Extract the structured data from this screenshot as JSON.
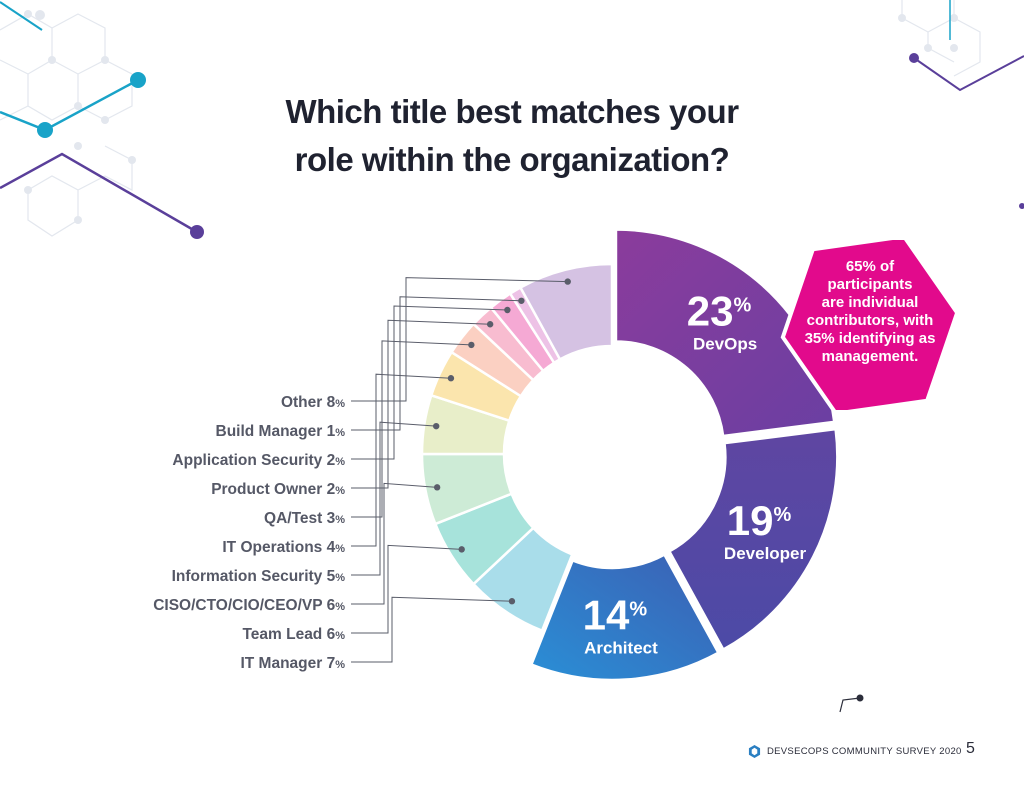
{
  "title_lines": [
    "Which title best matches your",
    "role within the organization?"
  ],
  "callout": {
    "lines": [
      "65% of",
      "participants",
      "are individual",
      "contributors, with",
      "35% identifying as",
      "management."
    ],
    "color": "#e20a8c"
  },
  "footer": {
    "brand": "DEVSECOPS COMMUNITY SURVEY 2020",
    "page": "5"
  },
  "chart_data": {
    "type": "pie",
    "donut": true,
    "title": "Which title best matches your role within the organization?",
    "unit": "%",
    "slices": [
      {
        "label": "DevOps",
        "value": 23,
        "color_start": "#8b3c9c",
        "color_end": "#6a3fa2",
        "labeled_inside": true
      },
      {
        "label": "Developer",
        "value": 19,
        "color_start": "#5f46a2",
        "color_end": "#4c4aa6",
        "labeled_inside": true
      },
      {
        "label": "Architect",
        "value": 14,
        "color_start": "#3c5fb3",
        "color_end": "#2a8fd6",
        "labeled_inside": true
      },
      {
        "label": "IT Manager",
        "value": 7,
        "color": "#a9ddea"
      },
      {
        "label": "Team Lead",
        "value": 6,
        "color": "#a7e3db"
      },
      {
        "label": "CISO/CTO/CIO/CEO/VP",
        "value": 6,
        "color": "#cdebd6"
      },
      {
        "label": "Information Security",
        "value": 5,
        "color": "#e8eec9"
      },
      {
        "label": "IT Operations",
        "value": 4,
        "color": "#fbe5ad"
      },
      {
        "label": "QA/Test",
        "value": 3,
        "color": "#fbd0c2"
      },
      {
        "label": "Product Owner",
        "value": 2,
        "color": "#f8bcd0"
      },
      {
        "label": "Application Security",
        "value": 2,
        "color": "#f5a9d4"
      },
      {
        "label": "Build Manager",
        "value": 1,
        "color": "#edc2e6"
      },
      {
        "label": "Other",
        "value": 8,
        "color": "#d5c2e3"
      }
    ],
    "legend_order": [
      "Other",
      "Build Manager",
      "Application Security",
      "Product Owner",
      "QA/Test",
      "IT Operations",
      "Information Security",
      "CISO/CTO/CIO/CEO/VP",
      "Team Lead",
      "IT Manager"
    ]
  }
}
